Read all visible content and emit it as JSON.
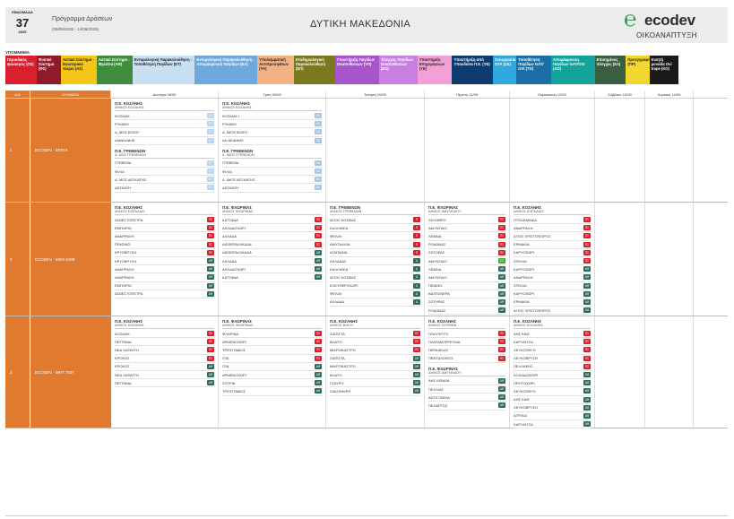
{
  "header": {
    "week_label": "ΕΒΔΟΜΑΔΑ",
    "week_number": "37",
    "year": "2025",
    "program_title": "Πρόγραμμα Δράσεων",
    "program_dates": "(08/09/2025 - 14/09/2025)",
    "region": "ΔΥΤΙΚΗ ΜΑΚΕΔΟΝΙΑ",
    "logo_text": "ecodev",
    "logo_sub": "ΟΙΚΟΑΝΑΠΤΥΞΗ",
    "logo_color": "#2e9a43"
  },
  "legend": {
    "title": "ΥΠΟΜΝΗΜΑ",
    "items": [
      {
        "label": "Περιοδικός ψεκασμός (ΠΣ)",
        "color": "#d9212e",
        "dark": false,
        "w": 36
      },
      {
        "label": "Φυσικό Σύστημα (ΦΣ)",
        "color": "#8e1a2a",
        "dark": false,
        "w": 28
      },
      {
        "label": "Αστικό Σύστημα - Εσωτερικοί Χώροι (ΑΣ)",
        "color": "#f5c518",
        "dark": true,
        "w": 41
      },
      {
        "label": "Αστικό Σύστημα - Φρεάτια (ΑΦ)",
        "color": "#3f8d3c",
        "dark": false,
        "w": 41
      },
      {
        "label": "Εντομολογική Παρακολούθηση - Τοποθέτηση Παγίδων (ΕΤ)",
        "color": "#c9dff2",
        "dark": true,
        "w": 72
      },
      {
        "label": "Εντομολογική Παρακολούθηση - Απομάκρυνση Παγίδων (ΕΑ)",
        "color": "#6fa8dc",
        "dark": false,
        "w": 72
      },
      {
        "label": "Υπολειμματική Αντιπροσφάτων (ΥΑ)",
        "color": "#f4b183",
        "dark": true,
        "w": 42
      },
      {
        "label": "Επιδημιολογική Παρακολούθηση (ΕΠ)",
        "color": "#7a7a1c",
        "dark": false,
        "w": 47
      },
      {
        "label": "Υποστήριξη Παγίδων Ωοαποθέσεων (ΥΠ)",
        "color": "#a855cc",
        "dark": false,
        "w": 51
      },
      {
        "label": "Έλεγχος Παγίδων Ωοαποθέσεων (ΕΩ)",
        "color": "#c97fe0",
        "dark": false,
        "w": 44
      },
      {
        "label": "Υποστήριξη Επιχειρήσεων (ΥΕ)",
        "color": "#f2a0d5",
        "dark": true,
        "w": 40
      },
      {
        "label": "Υποστήριξη από Υπουδιένα Π.Ε. (ΥΕ)",
        "color": "#0d3b6e",
        "dark": false,
        "w": 47
      },
      {
        "label": "Συνεργασία ΟΥΑ (ΣΕ)",
        "color": "#2fa8e0",
        "dark": false,
        "w": 27
      },
      {
        "label": "Τοποθέτηση Παγίδων GAT/ OVI (ΤΟ)",
        "color": "#1a6fa6",
        "dark": false,
        "w": 40
      },
      {
        "label": "Απομάκρυνση Παγίδων GAT/OVI (ΑΟ)",
        "color": "#12a39a",
        "dark": false,
        "w": 50
      },
      {
        "label": "Επισημένος Έλεγχος (ΕΛ)",
        "color": "#3a5e42",
        "dark": false,
        "w": 36
      },
      {
        "label": "Προεγγραφή (ΠΡ)",
        "color": "#f1d730",
        "dark": true,
        "w": 27
      },
      {
        "label": "Κινητή μονάδα Ovi trape (ΚΟ)",
        "color": "#1a1a1a",
        "dark": false,
        "w": 33
      }
    ]
  },
  "table": {
    "col_aa": "Α/Α",
    "col_vehicle": "ΟΧΗΜΑΤΑ",
    "days": [
      "Δευτέρα 08/09",
      "Τρίτη 09/09",
      "Τετάρτη 10/09",
      "Πέμπτη 11/09",
      "Παρασκευή 12/09",
      "Σάββατο 13/09",
      "Κυριακή 14/09"
    ],
    "rows": [
      {
        "aa": "1",
        "vehicle": "ECODEV - ΜΠΙΤΑ",
        "days": [
          [
            {
              "pe": "Π.Ε. ΚΟΖΑΝΗΣ",
              "dim": "ΔΗΜΟΣ ΚΟΖΑΝΗΣ",
              "entries": [
                {
                  "name": "ΚΟΖΑΝΗ",
                  "code": "ΕΤ"
                },
                {
                  "name": "ΡΥΜΝΙΟ",
                  "code": "ΕΤ"
                },
                {
                  "name": "Δ. ΜΟΣ ΒΟΙΟΥ",
                  "code": "ΕΤ"
                },
                {
                  "name": "ΑΙΑΝΗ/ΑΚΙΕ",
                  "code": "ΕΤ"
                }
              ]
            },
            {
              "pe": "Π.Ε. ΓΡΕΒΕΝΩΝ",
              "dim": "Δ. ΜΟΣ ΓΡΕΒΕΝΩΝ",
              "entries": [
                {
                  "name": "ΓΡΕΒΕΝΑ",
                  "code": "ΕΤ"
                },
                {
                  "name": "ΦΙΛΙΑ",
                  "code": "ΕΤ"
                },
                {
                  "name": "Δ. ΜΟΣ ΔΕΣΚΑΤΗΣ",
                  "code": "ΕΤ"
                },
                {
                  "name": "ΔΕΣΚΑΤΗ",
                  "code": "ΕΤ"
                }
              ]
            }
          ],
          [
            {
              "pe": "Π.Ε. ΚΟΖΑΝΗΣ",
              "dim": "ΔΗΜΟΣ ΚΟΖΑΝΗΣ",
              "entries": [
                {
                  "name": "ΚΟΖΑΝΗ Ι",
                  "code": "ΕΑ"
                },
                {
                  "name": "ΡΥΜΝΙΟ",
                  "code": "ΕΑ"
                },
                {
                  "name": "Δ. ΙΜΟΣ ΒΟΙΟΥ",
                  "code": "ΕΑ"
                },
                {
                  "name": "ΑΗ ΑΚΙΑΝΗΣ",
                  "code": "ΕΑ"
                }
              ]
            },
            {
              "pe": "Π.Ε. ΓΡΕΒΕΝΩΝ",
              "dim": "Δ. ΙΜΟΣ ΓΡΕΒΕΝΩΝ",
              "entries": [
                {
                  "name": "ΓΡΕΒΕΝΑ",
                  "code": "ΕΑ"
                },
                {
                  "name": "ΦΙΛΙΑ",
                  "code": "ΕΑ"
                },
                {
                  "name": "Δ. ΙΜΟΣ ΔΕΣΚΑΤΗΣ",
                  "code": "ΕΑ"
                },
                {
                  "name": "ΔΕΣΚΑΤΗ",
                  "code": "ΕΑ"
                }
              ]
            }
          ],
          [],
          [],
          [],
          [],
          []
        ]
      },
      {
        "aa": "2",
        "vehicle": "ECODEV - ΜΚΟ 6490",
        "days": [
          [
            {
              "pe": "Π.Ε. ΚΟΖΑΝΗΣ",
              "dim": "ΔΗΜΟΣ ΕΟΡΔΑΙΑΣ",
              "entries": [
                {
                  "name": "ΑΣΒΕΣΤΟΠΕΤΡΑ",
                  "code": "ΠΣ"
                },
                {
                  "name": "ΕΜΠΟΡΙΟ",
                  "code": "ΠΣ"
                },
                {
                  "name": "ΑΝΑΡΡΑΧΗ",
                  "code": "ΠΣ"
                },
                {
                  "name": "ΠΡΑΣΙΝΟ",
                  "code": "ΠΣ"
                },
                {
                  "name": "ΚΡΥΟΒΡΥΣΗ",
                  "code": "ΠΣ"
                },
                {
                  "name": "ΚΡΥΟΒΡΥΣΗ",
                  "code": "ΑΦ"
                },
                {
                  "name": "ΑΝΑΡΡΑΧΗ",
                  "code": "ΑΦ"
                },
                {
                  "name": "ΑΝΑΡΡΑΧΗ",
                  "code": "ΑΦ"
                },
                {
                  "name": "ΕΜΠΟΡΙΟ",
                  "code": "ΑΦ"
                },
                {
                  "name": "ΑΣΒΕΣΤΟΠΕΤΡΑ",
                  "code": "ΑΦ"
                }
              ]
            }
          ],
          [
            {
              "pe": "Π.Ε. ΦΛΩΡΙΝΑΣ",
              "dim": "ΔΗΜΟΣ ΦΛΩΡΙΝΑΣ",
              "entries": [
                {
                  "name": "ΚΑΤΤΑΝΑ",
                  "code": "ΠΣ"
                },
                {
                  "name": "ΑΧΛΑΔΟΧΩΡΙ",
                  "code": "ΠΣ"
                },
                {
                  "name": "ΑΧΛΑΔΑ",
                  "code": "ΠΣ"
                },
                {
                  "name": "ΑΙΣΘΕΡΑ/ΛΙΚΑΔΑ",
                  "code": "ΠΣ"
                },
                {
                  "name": "ΑΙΣΘΕΡΑ/ΛΙΚΑΔΑ",
                  "code": "ΑΦ"
                },
                {
                  "name": "ΑΧΛΑΔΑ",
                  "code": "ΑΦ"
                },
                {
                  "name": "ΑΧΛΑΔΟΧΩΡΙ",
                  "code": "ΑΦ"
                },
                {
                  "name": "ΚΑΤΤΑΝΑ",
                  "code": "ΑΦ"
                }
              ]
            }
          ],
          [
            {
              "pe": "Π.Ε. ΓΡΕΒΕΝΩΝ",
              "dim": "ΔΗΜΟΣ ΓΡΕΒΕΝΩΝ",
              "entries": [
                {
                  "name": "ΑΓΙΟΣ ΚΟΣΜΑΣ",
                  "code": "Π"
                },
                {
                  "name": "ΚΑΛΛΙΘΕΑ",
                  "code": "Π"
                },
                {
                  "name": "ΦΕΛΙΛΙ",
                  "code": "Π"
                },
                {
                  "name": "ΑΜΥΓΔΑΛΙΑ",
                  "code": "Π"
                },
                {
                  "name": "ΑΓΑΠΙΑΝΑ",
                  "code": "Π"
                },
                {
                  "name": "ΑΧΛΑΔΑΣ",
                  "code": "Α"
                },
                {
                  "name": "ΚΑΛΛΙΘΕΑ",
                  "code": "Α"
                },
                {
                  "name": "ΑΓΙΟΣ ΚΟΣΜΑΣ",
                  "code": "Α"
                },
                {
                  "name": "ΕΛΕΥΘΕΡΟΧΩΡΙ",
                  "code": "Α"
                },
                {
                  "name": "ΦΕΛΙΛΙ",
                  "code": "Α"
                },
                {
                  "name": "ΑΧΛΑΔΑ",
                  "code": "Α"
                }
              ]
            }
          ],
          [
            {
              "pe": "Π.Ε. ΦΛΩΡΙΝΑΣ",
              "dim": "ΔΗΜΟΣ ΑΜΥΝΤΑΙΟΥ",
              "entries": [
                {
                  "name": "ΣΚΛΗΘΡΟ",
                  "code": "ΠΣ"
                },
                {
                  "name": "ΑΜΥΝΤΑΙΟ",
                  "code": "ΠΣ"
                },
                {
                  "name": "ΛΕΒΑΙΑ",
                  "code": "ΠΣ"
                },
                {
                  "name": "ΡΟΔΩΝΑΣ",
                  "code": "ΠΣ"
                },
                {
                  "name": "ΣΩΤΗΡΑΣ",
                  "code": "ΠΣ"
                },
                {
                  "name": "ΑΜΥΝΤΑΙΟ",
                  "code": "ΕΠ"
                },
                {
                  "name": "ΛΕΒΑΙΑ",
                  "code": "ΑΦ"
                },
                {
                  "name": "ΑΜΥΝΤΑΙΟ",
                  "code": "ΑΦ"
                },
                {
                  "name": "ΠΕΔΙΝΟ",
                  "code": "ΑΦ"
                },
                {
                  "name": "ΒΑΛΤΟΝΕΡΑ",
                  "code": "ΑΦ"
                },
                {
                  "name": "ΣΩΤΗΡΑΣ",
                  "code": "ΑΦ"
                },
                {
                  "name": "ΡΟΔΩΝΑΣ",
                  "code": "ΑΦ"
                }
              ]
            }
          ],
          [
            {
              "pe": "Π.Ε. ΚΟΖΑΝΗΣ",
              "dim": "ΔΗΜΟΣ ΕΟΡΔΑΙΑΣ",
              "entries": [
                {
                  "name": "ΠΤΟΛΕΜΑΙΔΑ",
                  "code": "ΠΣ"
                },
                {
                  "name": "ΑΝΑΡΡΑΧΗ",
                  "code": "ΠΣ"
                },
                {
                  "name": "ΑΓΙΟΣ ΧΡΙΣΤΟΦΟΡΟΣ",
                  "code": "ΠΣ"
                },
                {
                  "name": "ΕΡΜΑΚΙΑ",
                  "code": "ΠΣ"
                },
                {
                  "name": "ΚΑΡΥΟΧΩΡΙ",
                  "code": "ΠΣ"
                },
                {
                  "name": "ΣΠΗΛΙΑ",
                  "code": "ΠΣ"
                },
                {
                  "name": "ΚΑΡΥΟΧΩΡΙ",
                  "code": "ΑΦ"
                },
                {
                  "name": "ΑΝΑΡΡΑΧΗ",
                  "code": "ΑΦ"
                },
                {
                  "name": "ΣΠΗΛΙΑ",
                  "code": "ΑΦ"
                },
                {
                  "name": "ΚΑΡΥΟΧΩΡΙ",
                  "code": "ΑΦ"
                },
                {
                  "name": "ΕΡΜΑΚΙΑ",
                  "code": "ΑΦ"
                },
                {
                  "name": "ΑΓΙΟΣ ΧΡΙΣΤΟΦΟΡΟΣ",
                  "code": "ΑΦ"
                }
              ]
            }
          ],
          [],
          []
        ]
      },
      {
        "aa": "3",
        "vehicle": "ECODEV - ΜΗΤ 7507",
        "days": [
          [
            {
              "pe": "Π.Ε. ΚΟΖΑΝΗΣ",
              "dim": "ΔΗΜΟΣ ΚΟΖΑΝΗΣ",
              "entries": [
                {
                  "name": "ΚΟΖΑΝΗ",
                  "code": "ΠΣ"
                },
                {
                  "name": "ΠΕΤΡΑΝΑ",
                  "code": "ΠΣ"
                },
                {
                  "name": "ΝΕΑ ΧΑΡΑΥΓΗ",
                  "code": "ΠΣ"
                },
                {
                  "name": "ΚΡΟΚΟΣ",
                  "code": "ΠΣ"
                },
                {
                  "name": "ΚΡΟΚΟΣ",
                  "code": "ΑΦ"
                },
                {
                  "name": "ΝΕΑ ΧΑΡΑΥΓΗ",
                  "code": "ΑΦ"
                },
                {
                  "name": "ΠΕΤΡΑΝΑ",
                  "code": "ΑΦ"
                }
              ]
            }
          ],
          [
            {
              "pe": "Π.Ε. ΦΛΩΡΙΝΑΣ",
              "dim": "ΔΗΜΟΣ ΦΛΩΡΙΝΑΣ",
              "entries": [
                {
                  "name": "ΦΛΩΡΙΝΑ",
                  "code": "ΠΣ"
                },
                {
                  "name": "ΑΡΜΕΝΟΧΩΡΙ",
                  "code": "ΠΣ"
                },
                {
                  "name": "ΤΡΙΠΟΤΑΜΟΣ",
                  "code": "ΠΣ"
                },
                {
                  "name": "ΙΤΙΑ",
                  "code": "ΠΣ"
                },
                {
                  "name": "ΙΤΙΑ",
                  "code": "ΑΦ"
                },
                {
                  "name": "ΑΡΜΕΝΟΧΩΡΙ",
                  "code": "ΑΦ"
                },
                {
                  "name": "ΣΠΥΡΙΑ",
                  "code": "ΑΦ"
                },
                {
                  "name": "ΤΡΙΠΟΤΑΜΟΣ",
                  "code": "ΑΦ"
                }
              ]
            }
          ],
          [
            {
              "pe": "Π.Ε. ΚΟΖΑΝΗΣ",
              "dim": "ΔΗΜΟΣ ΒΟΙΟΥ",
              "entries": [
                {
                  "name": "ΣΙΑΤΙΣΤΑ",
                  "code": "ΠΣ"
                },
                {
                  "name": "ΒΛΑΤΣΙ",
                  "code": "ΠΣ"
                },
                {
                  "name": "ΜΙΚΡΟΚΑΣΤΡΟ",
                  "code": "ΠΣ"
                },
                {
                  "name": "ΣΙΑΤΙΣΤΑ",
                  "code": "ΑΦ"
                },
                {
                  "name": "ΜΙΚΡΟΚΑΣΤΡΟ",
                  "code": "ΑΦ"
                },
                {
                  "name": "ΒΛΑΤΣΙ",
                  "code": "ΑΦ"
                },
                {
                  "name": "ΣΤΑΥΡΟ",
                  "code": "ΑΦ"
                },
                {
                  "name": "ΣΑΚΟΝΗ/ΡΗ",
                  "code": "ΑΦ"
                }
              ]
            }
          ],
          [
            {
              "pe": "Π.Ε. ΚΟΖΑΝΗΣ",
              "dim": "ΔΗΜΟΣ ΣΕΡΒΙΩΝ",
              "entries": [
                {
                  "name": "ΠΟΛΥΦΥΤΟ",
                  "code": "ΠΣ"
                },
                {
                  "name": "ΠΛΑΤΑΝΟΡΡΕΥΜΑ",
                  "code": "ΠΣ"
                },
                {
                  "name": "ΠΕΡΔΙΚΚΑΣ",
                  "code": "ΠΣ"
                },
                {
                  "name": "ΠΕΝΤΑΛΟΦΟΣ",
                  "code": "ΠΣ"
                }
              ]
            },
            {
              "pe": "Π.Ε. ΦΛΩΡΙΝΑΣ",
              "dim": "ΔΗΜΟΣ ΑΜΥΝΤΑΙΟΥ",
              "entries": [
                {
                  "name": "ΑΗΣ ΛΕΒΑΙΑ",
                  "code": "ΑΦ"
                },
                {
                  "name": "ΠΕΛΛΙΑΣ",
                  "code": "ΑΦ"
                },
                {
                  "name": "ΑΝΤΙΓΟΝΕΙΑ",
                  "code": "ΑΦ"
                },
                {
                  "name": "ΠΕΛΑΡΓΟΣ",
                  "code": "ΑΦ"
                }
              ]
            }
          ],
          [
            {
              "pe": "Π.Ε. ΚΟΖΑΝΗΣ",
              "dim": "ΔΗΜΟΣ ΚΟΖΑΝΗΣ",
              "entries": [
                {
                  "name": "ΑΗΣ ΚΑΦ",
                  "code": "ΠΣ"
                },
                {
                  "name": "ΚΑΡΥΔΙΤΣΑ",
                  "code": "ΠΣ"
                },
                {
                  "name": "ΛΕΥΚΟΠΗΓΗ",
                  "code": "ΠΣ"
                },
                {
                  "name": "ΛΕΥΚΟΒΡΥΣΗ",
                  "code": "ΠΣ"
                },
                {
                  "name": "ΠΕΛΛΑΚΗΣ",
                  "code": "ΠΣ"
                },
                {
                  "name": "ΚΟΙΛΑΔΟΧΩΡΙ",
                  "code": "ΑΦ"
                },
                {
                  "name": "ΠΡΟΤΟΧΩΡΙ",
                  "code": "ΑΦ"
                },
                {
                  "name": "ΛΕΥΚΟΠΗΓΗ",
                  "code": "ΑΦ"
                },
                {
                  "name": "ΑΗΣ ΚΑΦ",
                  "code": "ΑΦ"
                },
                {
                  "name": "ΛΕΥΚΟΒΡΥΣΗ",
                  "code": "ΑΦ"
                },
                {
                  "name": "ΑΓΡΙΛΙΑ",
                  "code": "ΑΦ"
                },
                {
                  "name": "ΚΑΡΥΔΙΤΣΑ",
                  "code": "ΑΦ"
                }
              ]
            }
          ],
          [],
          []
        ]
      }
    ]
  },
  "codes": {
    "ΠΣ": "#d9212e",
    "ΑΦ": "#2f6b5d",
    "ΕΤ": "#b8d4ee",
    "ΕΑ": "#a9c4e0",
    "ΕΠ": "#3faa3a",
    "Π": "#d9212e",
    "Α": "#2f6b5d"
  }
}
